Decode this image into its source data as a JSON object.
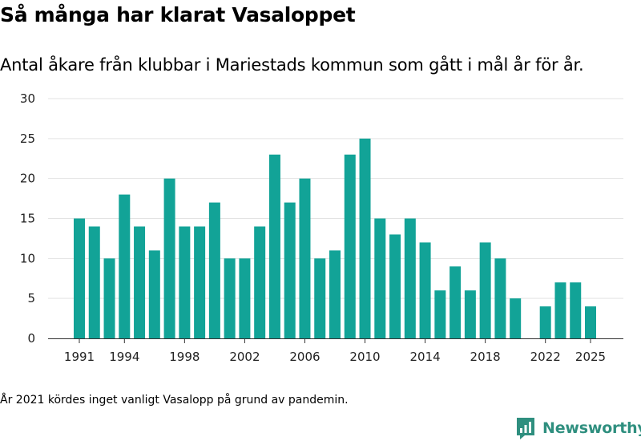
{
  "header": {
    "title": "Så många har klarat Vasaloppet",
    "subtitle": "Antal åkare från klubbar i Mariestads kommun som gått i mål år för år."
  },
  "footnote": "År 2021 kördes inget vanligt Vasalopp på grund av pandemin.",
  "brand": {
    "name": "Newsworthy",
    "icon": "newsworthy-logo-icon",
    "color": "#2f8f7f"
  },
  "colors": {
    "bar": "#12a397",
    "grid": "#e3e3e3",
    "axis": "#333333"
  },
  "chart_data": {
    "type": "bar",
    "title": "Så många har klarat Vasaloppet",
    "subtitle": "Antal åkare från klubbar i Mariestads kommun som gått i mål år för år.",
    "xlabel": "",
    "ylabel": "",
    "ylim": [
      0,
      30
    ],
    "yticks": [
      0,
      5,
      10,
      15,
      20,
      25,
      30
    ],
    "xticks": [
      "1991",
      "1994",
      "1998",
      "2002",
      "2006",
      "2010",
      "2014",
      "2018",
      "2022",
      "2025"
    ],
    "grid": true,
    "categories": [
      "1991",
      "1992",
      "1993",
      "1994",
      "1995",
      "1996",
      "1997",
      "1998",
      "1999",
      "2000",
      "2001",
      "2002",
      "2003",
      "2004",
      "2005",
      "2006",
      "2007",
      "2008",
      "2009",
      "2010",
      "2011",
      "2012",
      "2013",
      "2014",
      "2015",
      "2016",
      "2017",
      "2018",
      "2019",
      "2020",
      "2021",
      "2022",
      "2023",
      "2024",
      "2025"
    ],
    "values": [
      15,
      14,
      10,
      18,
      14,
      11,
      20,
      14,
      14,
      17,
      10,
      10,
      14,
      23,
      17,
      20,
      10,
      11,
      23,
      25,
      15,
      13,
      15,
      12,
      6,
      9,
      6,
      12,
      10,
      5,
      null,
      4,
      7,
      7,
      4
    ]
  }
}
